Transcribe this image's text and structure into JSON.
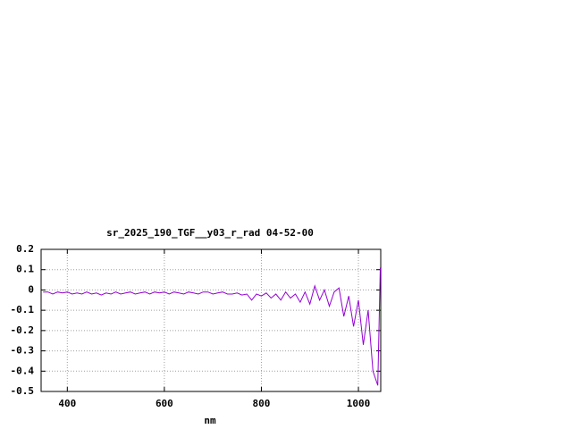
{
  "chart_data": {
    "type": "line",
    "title": "sr_2025_190_TGF__y03_r_rad 04-52-00",
    "x_label": "nm",
    "x": [
      350,
      360,
      370,
      380,
      390,
      400,
      410,
      420,
      430,
      440,
      450,
      460,
      470,
      480,
      490,
      500,
      510,
      520,
      530,
      540,
      550,
      560,
      570,
      580,
      590,
      600,
      610,
      620,
      630,
      640,
      650,
      660,
      670,
      680,
      690,
      700,
      710,
      720,
      730,
      740,
      750,
      760,
      770,
      780,
      790,
      800,
      810,
      820,
      830,
      840,
      850,
      860,
      870,
      880,
      890,
      900,
      910,
      920,
      930,
      940,
      950,
      960,
      970,
      980,
      990,
      1000,
      1010,
      1020,
      1030,
      1040,
      1045
    ],
    "series": [
      {
        "color": "#9400d3",
        "values": [
          -0.01,
          -0.01,
          -0.02,
          -0.01,
          -0.015,
          -0.01,
          -0.02,
          -0.015,
          -0.02,
          -0.01,
          -0.02,
          -0.015,
          -0.025,
          -0.015,
          -0.02,
          -0.01,
          -0.02,
          -0.015,
          -0.01,
          -0.02,
          -0.015,
          -0.01,
          -0.02,
          -0.01,
          -0.015,
          -0.01,
          -0.02,
          -0.01,
          -0.015,
          -0.02,
          -0.01,
          -0.015,
          -0.02,
          -0.01,
          -0.01,
          -0.02,
          -0.015,
          -0.01,
          -0.02,
          -0.02,
          -0.015,
          -0.025,
          -0.02,
          -0.05,
          -0.02,
          -0.03,
          -0.015,
          -0.04,
          -0.02,
          -0.05,
          -0.01,
          -0.04,
          -0.02,
          -0.06,
          -0.01,
          -0.07,
          0.02,
          -0.05,
          0.0,
          -0.08,
          -0.01,
          0.01,
          -0.13,
          -0.03,
          -0.18,
          -0.05,
          -0.27,
          -0.1,
          -0.4,
          -0.47,
          0.11
        ]
      }
    ],
    "xlim": [
      346,
      1046
    ],
    "xticks": [
      400,
      600,
      800,
      1000
    ],
    "ylim": [
      -0.5,
      0.2
    ],
    "yticks": [
      0.2,
      0.1,
      0,
      -0.1,
      -0.2,
      -0.3,
      -0.4,
      -0.5
    ],
    "grid": true
  }
}
